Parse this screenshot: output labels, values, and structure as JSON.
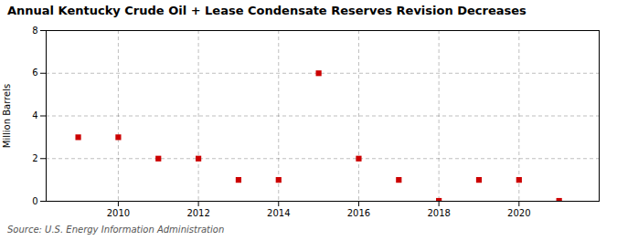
{
  "chart_data": {
    "type": "scatter",
    "title": "Annual Kentucky Crude Oil + Lease Condensate Reserves Revision Decreases",
    "ylabel": "Million Barrels",
    "source": "Source: U.S. Energy Information Administration",
    "x": [
      2009,
      2010,
      2011,
      2012,
      2013,
      2014,
      2015,
      2016,
      2017,
      2018,
      2019,
      2020,
      2021
    ],
    "values": [
      3.0,
      3.0,
      2.0,
      2.0,
      1.0,
      1.0,
      6.0,
      2.0,
      1.0,
      0.02,
      1.0,
      1.0,
      0.02
    ],
    "color": "#cc0000",
    "marker": "square",
    "xlim": [
      2008.2,
      2022.0
    ],
    "xticks": [
      2010,
      2012,
      2014,
      2016,
      2018,
      2020
    ],
    "ylim": [
      0,
      8
    ],
    "yticks": [
      0,
      2,
      4,
      6,
      8
    ],
    "grid": true
  }
}
